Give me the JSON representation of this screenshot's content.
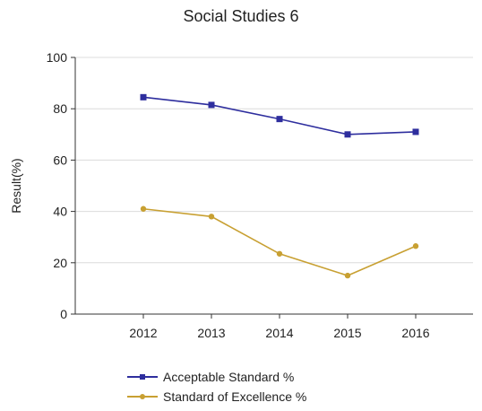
{
  "chart_data": {
    "type": "line",
    "title": "Social Studies 6",
    "xlabel": "",
    "ylabel": "Result(%)",
    "categories": [
      "2012",
      "2013",
      "2014",
      "2015",
      "2016"
    ],
    "ylim": [
      0,
      100
    ],
    "yticks": [
      0,
      20,
      40,
      60,
      80,
      100
    ],
    "grid": true,
    "legend_position": "bottom",
    "series": [
      {
        "name": "Acceptable Standard %",
        "color": "#2e2e9e",
        "marker": "square",
        "values": [
          84.5,
          81.5,
          76,
          70,
          71
        ]
      },
      {
        "name": "Standard of Excellence %",
        "color": "#c8a032",
        "marker": "triangle",
        "values": [
          41,
          38,
          23.5,
          15,
          26.5
        ]
      }
    ]
  }
}
